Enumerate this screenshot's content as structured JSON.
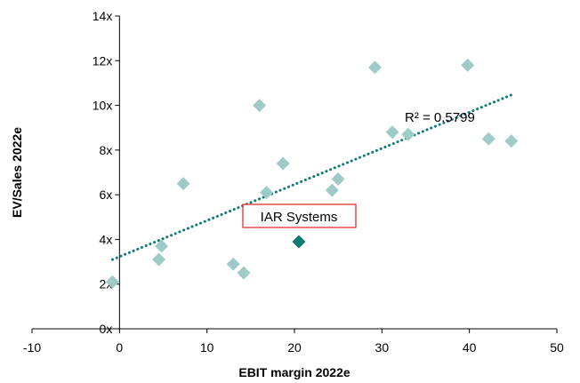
{
  "chart_data": {
    "type": "scatter",
    "xlabel": "EBIT margin 2022e",
    "ylabel": "EV/Sales 2022e",
    "xlim": [
      -10,
      50
    ],
    "ylim": [
      0,
      14
    ],
    "x_ticks": [
      -10,
      0,
      10,
      20,
      30,
      40,
      50
    ],
    "y_ticks": [
      0,
      2,
      4,
      6,
      8,
      10,
      12,
      14
    ],
    "y_tick_labels": [
      "0x",
      "2x",
      "4x",
      "6x",
      "8x",
      "10x",
      "12x",
      "14x"
    ],
    "grid": false,
    "legend": "none",
    "series": [
      {
        "color": "#9ecbc6",
        "marker": "diamond",
        "points": [
          {
            "x": -0.8,
            "y": 2.1
          },
          {
            "x": 4.5,
            "y": 3.1
          },
          {
            "x": 4.8,
            "y": 3.7
          },
          {
            "x": 7.3,
            "y": 6.5
          },
          {
            "x": 13.0,
            "y": 2.9
          },
          {
            "x": 14.2,
            "y": 2.5
          },
          {
            "x": 16.0,
            "y": 10.0
          },
          {
            "x": 16.8,
            "y": 6.1
          },
          {
            "x": 18.7,
            "y": 7.4
          },
          {
            "x": 24.3,
            "y": 6.2
          },
          {
            "x": 25.0,
            "y": 6.7
          },
          {
            "x": 29.2,
            "y": 11.7
          },
          {
            "x": 31.2,
            "y": 8.8
          },
          {
            "x": 33.0,
            "y": 8.7
          },
          {
            "x": 39.8,
            "y": 11.8
          },
          {
            "x": 42.2,
            "y": 8.5
          },
          {
            "x": 44.8,
            "y": 8.4
          }
        ]
      },
      {
        "color": "#0e7a73",
        "marker": "diamond",
        "points": [
          {
            "x": 20.5,
            "y": 3.9
          }
        ]
      }
    ],
    "trendline": {
      "color": "#0e7a73",
      "style": "dotted",
      "x_start": -0.8,
      "y_start": 3.1,
      "x_end": 45.0,
      "y_end": 10.5,
      "label": "R² = 0.5799"
    },
    "annotations": [
      {
        "text": "IAR Systems",
        "border_color": "#e02020",
        "x": 22.3,
        "y": 5.1
      }
    ]
  }
}
